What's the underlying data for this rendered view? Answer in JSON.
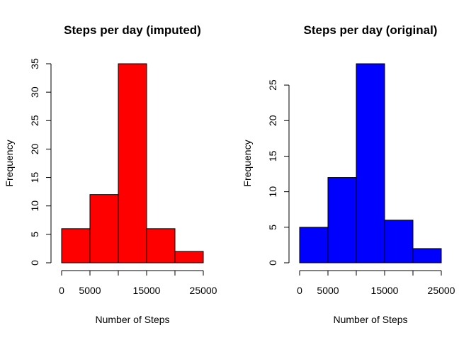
{
  "chart_data": [
    {
      "type": "bar",
      "title": "Steps per day (imputed)",
      "xlabel": "Number of Steps",
      "ylabel": "Frequency",
      "color": "#ff0000",
      "bins": [
        [
          0,
          5000
        ],
        [
          5000,
          10000
        ],
        [
          10000,
          15000
        ],
        [
          15000,
          20000
        ],
        [
          20000,
          25000
        ]
      ],
      "values": [
        6,
        12,
        35,
        6,
        2
      ],
      "xlim": [
        0,
        25000
      ],
      "ylim": [
        0,
        35
      ],
      "x_ticks": [
        0,
        5000,
        10000,
        15000,
        20000,
        25000
      ],
      "x_tick_labels": [
        "0",
        "5000",
        "",
        "15000",
        "",
        "25000"
      ],
      "y_ticks": [
        0,
        5,
        10,
        15,
        20,
        25,
        30,
        35
      ],
      "y_tick_labels": [
        "0",
        "5",
        "10",
        "15",
        "20",
        "25",
        "30",
        "35"
      ],
      "grid": false
    },
    {
      "type": "bar",
      "title": "Steps per day (original)",
      "xlabel": "Number of Steps",
      "ylabel": "Frequency",
      "color": "#0000ff",
      "bins": [
        [
          0,
          5000
        ],
        [
          5000,
          10000
        ],
        [
          10000,
          15000
        ],
        [
          15000,
          20000
        ],
        [
          20000,
          25000
        ]
      ],
      "values": [
        5,
        12,
        28,
        6,
        2
      ],
      "xlim": [
        0,
        25000
      ],
      "ylim": [
        0,
        28
      ],
      "x_ticks": [
        0,
        5000,
        10000,
        15000,
        20000,
        25000
      ],
      "x_tick_labels": [
        "0",
        "5000",
        "",
        "15000",
        "",
        "25000"
      ],
      "y_ticks": [
        0,
        5,
        10,
        15,
        20,
        25
      ],
      "y_tick_labels": [
        "0",
        "5",
        "10",
        "15",
        "20",
        "25"
      ],
      "grid": false
    }
  ]
}
